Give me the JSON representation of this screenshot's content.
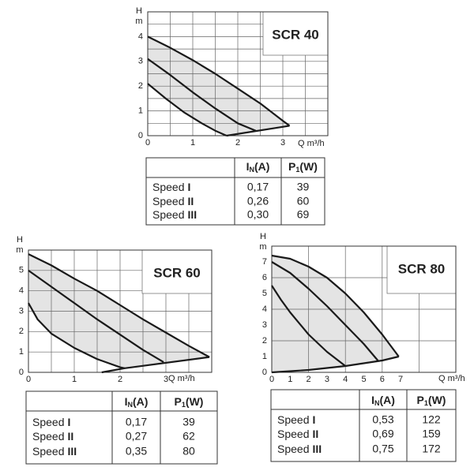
{
  "chart_data": [
    {
      "type": "line",
      "title": "SCR 40",
      "ylabel": "H",
      "yunit": "m",
      "xlabel": "Q m³/h",
      "xlim": [
        0,
        4
      ],
      "ylim": [
        0,
        5
      ],
      "xticks": [
        0,
        1,
        2,
        3
      ],
      "yticks": [
        0,
        1,
        2,
        3,
        4
      ],
      "xgrid": [
        0.5,
        1,
        1.5,
        2,
        2.5,
        3,
        3.5
      ],
      "ygrid": [
        0.5,
        1,
        1.5,
        2,
        2.5,
        3,
        3.5,
        4,
        4.5
      ],
      "color": "#1a1a1a",
      "fill": "#e4e4e4",
      "series": [
        {
          "x": [
            0,
            0.4,
            0.8,
            1.2,
            1.5,
            1.75
          ],
          "values": [
            2.1,
            1.5,
            0.95,
            0.5,
            0.2,
            0.0
          ]
        },
        {
          "x": [
            0,
            0.5,
            1,
            1.5,
            2,
            2.4
          ],
          "values": [
            3.1,
            2.45,
            1.75,
            1.1,
            0.5,
            0.2
          ]
        },
        {
          "x": [
            0,
            0.5,
            1,
            1.5,
            2,
            2.5,
            3,
            3.15
          ],
          "values": [
            4.0,
            3.55,
            3.05,
            2.5,
            1.9,
            1.3,
            0.6,
            0.4
          ]
        },
        {
          "x": [
            1.75,
            3.15
          ],
          "values": [
            0.0,
            0.4
          ]
        }
      ],
      "table": {
        "columns": [
          {
            "symbol": "I",
            "sub": "N",
            "unit": "(A)"
          },
          {
            "symbol": "P",
            "sub": "1",
            "unit": "(W)"
          }
        ],
        "rows": [
          {
            "label": "Speed",
            "speed": "I",
            "values": [
              "0,17",
              "39"
            ]
          },
          {
            "label": "Speed",
            "speed": "II",
            "values": [
              "0,26",
              "60"
            ]
          },
          {
            "label": "Speed",
            "speed": "III",
            "values": [
              "0,30",
              "69"
            ]
          }
        ]
      }
    },
    {
      "type": "line",
      "title": "SCR 60",
      "ylabel": "H",
      "yunit": "m",
      "xlabel": "Q m³/h",
      "xlim": [
        0,
        4
      ],
      "ylim": [
        0,
        6
      ],
      "xticks": [
        0,
        1,
        2,
        3
      ],
      "yticks": [
        0,
        1,
        2,
        3,
        4,
        5
      ],
      "xgrid": [
        0.5,
        1,
        1.5,
        2,
        2.5,
        3,
        3.5
      ],
      "ygrid": [
        1,
        2,
        3,
        4,
        5
      ],
      "color": "#1a1a1a",
      "fill": "#e4e4e4",
      "series": [
        {
          "x": [
            0,
            0.2,
            0.5,
            1,
            1.5,
            2,
            2.1
          ],
          "values": [
            3.4,
            2.6,
            1.9,
            1.2,
            0.65,
            0.25,
            0.2
          ]
        },
        {
          "x": [
            0,
            0.5,
            1,
            1.5,
            2,
            2.5,
            2.95
          ],
          "values": [
            5.0,
            4.2,
            3.4,
            2.6,
            1.85,
            1.1,
            0.5
          ]
        },
        {
          "x": [
            0,
            0.5,
            1,
            1.5,
            2,
            2.5,
            3,
            3.5,
            3.95
          ],
          "values": [
            5.8,
            5.25,
            4.6,
            4.0,
            3.3,
            2.6,
            1.95,
            1.3,
            0.75
          ]
        },
        {
          "x": [
            1.6,
            2.1,
            3.95
          ],
          "values": [
            0.0,
            0.2,
            0.75
          ]
        }
      ],
      "table": {
        "columns": [
          {
            "symbol": "I",
            "sub": "N",
            "unit": "(A)"
          },
          {
            "symbol": "P",
            "sub": "1",
            "unit": "(W)"
          }
        ],
        "rows": [
          {
            "label": "Speed",
            "speed": "I",
            "values": [
              "0,17",
              "39"
            ]
          },
          {
            "label": "Speed",
            "speed": "II",
            "values": [
              "0,27",
              "62"
            ]
          },
          {
            "label": "Speed",
            "speed": "III",
            "values": [
              "0,35",
              "80"
            ]
          }
        ]
      }
    },
    {
      "type": "line",
      "title": "SCR 80",
      "ylabel": "H",
      "yunit": "m",
      "xlabel": "Q m³/h",
      "xlim": [
        0,
        10
      ],
      "ylim": [
        0,
        8
      ],
      "xticks": [
        0,
        1,
        2,
        3,
        4,
        5,
        6,
        7
      ],
      "yticks": [
        0,
        1,
        2,
        3,
        4,
        5,
        6,
        7
      ],
      "xgrid": [
        2,
        4,
        6,
        8
      ],
      "ygrid": [
        2,
        4,
        6
      ],
      "color": "#1a1a1a",
      "fill": "#e4e4e4",
      "series": [
        {
          "x": [
            0,
            0.5,
            1,
            2,
            3,
            4
          ],
          "values": [
            5.5,
            4.6,
            3.8,
            2.4,
            1.3,
            0.4
          ]
        },
        {
          "x": [
            0,
            1,
            2,
            3,
            4,
            5,
            5.8
          ],
          "values": [
            7.0,
            6.3,
            5.3,
            4.2,
            3.0,
            1.8,
            0.7
          ]
        },
        {
          "x": [
            0,
            1,
            2,
            3,
            4,
            5,
            6,
            6.9
          ],
          "values": [
            7.4,
            7.2,
            6.7,
            6.0,
            5.0,
            3.8,
            2.4,
            1.0
          ]
        },
        {
          "x": [
            0,
            2,
            4,
            6,
            6.9
          ],
          "values": [
            0,
            0.15,
            0.4,
            0.75,
            1.0
          ]
        }
      ],
      "table": {
        "columns": [
          {
            "symbol": "I",
            "sub": "N",
            "unit": "(A)"
          },
          {
            "symbol": "P",
            "sub": "1",
            "unit": "(W)"
          }
        ],
        "rows": [
          {
            "label": "Speed",
            "speed": "I",
            "values": [
              "0,53",
              "122"
            ]
          },
          {
            "label": "Speed",
            "speed": "II",
            "values": [
              "0,69",
              "159"
            ]
          },
          {
            "label": "Speed",
            "speed": "III",
            "values": [
              "0,75",
              "172"
            ]
          }
        ]
      }
    }
  ]
}
